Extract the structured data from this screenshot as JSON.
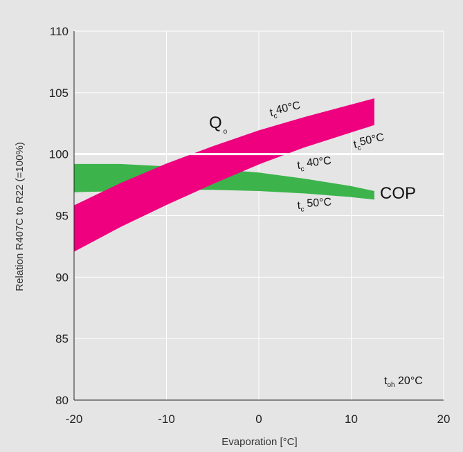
{
  "chart_data": {
    "type": "area",
    "xlabel": "Evaporation  [°C]",
    "ylabel": "Relation R407C to R22 (=100%)",
    "xlim": [
      -20,
      20
    ],
    "ylim": [
      80,
      110
    ],
    "x_ticks": [
      "-20",
      "-10",
      "0",
      "10",
      "20"
    ],
    "y_ticks": [
      "80",
      "85",
      "90",
      "95",
      "100",
      "105",
      "110"
    ],
    "grid": true,
    "reference_line_y": 100,
    "colors": {
      "background": "#e5e5e5",
      "plot_area": "#e5e5e5",
      "grid": "#ffffff",
      "qo_band": "#ee007f",
      "cop_band": "#3cb44b"
    },
    "series": [
      {
        "name": "Qo",
        "label_main": "Q",
        "label_sub": "o",
        "upper_curve": "tc 40°C",
        "lower_curve": "tc 50°C",
        "upper": {
          "x": [
            -20,
            -15,
            -10,
            -5,
            0,
            5,
            10,
            12.5
          ],
          "y": [
            95.8,
            97.6,
            99.2,
            100.6,
            101.9,
            103.0,
            104.0,
            104.5
          ]
        },
        "lower": {
          "x": [
            -20,
            -15,
            -10,
            -5,
            0,
            5,
            10,
            12.5
          ],
          "y": [
            92.1,
            94.1,
            95.9,
            97.6,
            99.2,
            100.6,
            101.8,
            102.4
          ]
        }
      },
      {
        "name": "COP",
        "label_main": "COP",
        "upper_curve": "tc 40°C",
        "lower_curve": "tc 50°C",
        "upper": {
          "x": [
            -20,
            -15,
            -10,
            -5,
            0,
            5,
            10,
            12.5
          ],
          "y": [
            99.2,
            99.2,
            99.0,
            98.8,
            98.5,
            98.0,
            97.4,
            97.0
          ]
        },
        "lower": {
          "x": [
            -20,
            -15,
            -10,
            -5,
            0,
            5,
            10,
            12.5
          ],
          "y": [
            96.9,
            97.0,
            97.1,
            97.1,
            97.0,
            96.8,
            96.5,
            96.3
          ]
        }
      }
    ],
    "annotations": {
      "qo_tc40": {
        "main": "t",
        "sub": "c",
        "rest": "40°C"
      },
      "qo_tc50": {
        "main": "t",
        "sub": "c",
        "rest": "50°C"
      },
      "cop_tc40": {
        "main": "t",
        "sub": "c",
        "rest": " 40°C"
      },
      "cop_tc50": {
        "main": "t",
        "sub": "c",
        "rest": " 50°C"
      },
      "toh": {
        "main": "t",
        "sub": "oh",
        "rest": " 20°C"
      }
    }
  }
}
